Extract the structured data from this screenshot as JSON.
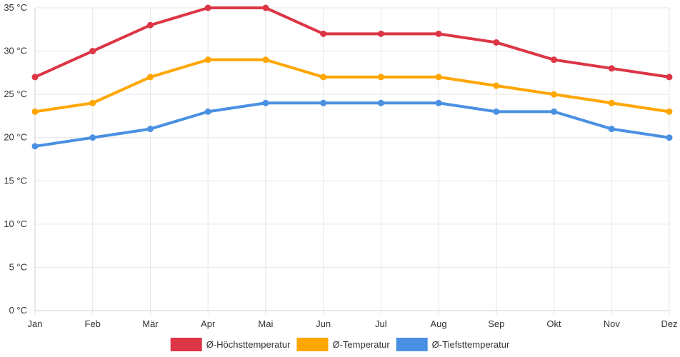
{
  "chart_data": {
    "type": "line",
    "categories": [
      "Jan",
      "Feb",
      "Mär",
      "Apr",
      "Mai",
      "Jun",
      "Jul",
      "Aug",
      "Sep",
      "Okt",
      "Nov",
      "Dez"
    ],
    "y_tick_values": [
      0,
      5,
      10,
      15,
      20,
      25,
      30,
      35
    ],
    "y_unit": "°C",
    "ylim": [
      0,
      35
    ],
    "grid": true,
    "legend_position": "bottom",
    "series": [
      {
        "name": "Ø-Höchsttemperatur",
        "color": "#dc3545",
        "values": [
          27,
          30,
          33,
          35,
          35,
          32,
          32,
          32,
          31,
          29,
          28,
          27
        ]
      },
      {
        "name": "Ø-Temperatur",
        "color": "#ffa600",
        "values": [
          23,
          24,
          27,
          29,
          29,
          27,
          27,
          27,
          26,
          25,
          24,
          23
        ]
      },
      {
        "name": "Ø-Tiefsttemperatur",
        "color": "#4a90e2",
        "values": [
          19,
          20,
          21,
          23,
          24,
          24,
          24,
          24,
          23,
          23,
          21,
          20
        ]
      }
    ]
  }
}
